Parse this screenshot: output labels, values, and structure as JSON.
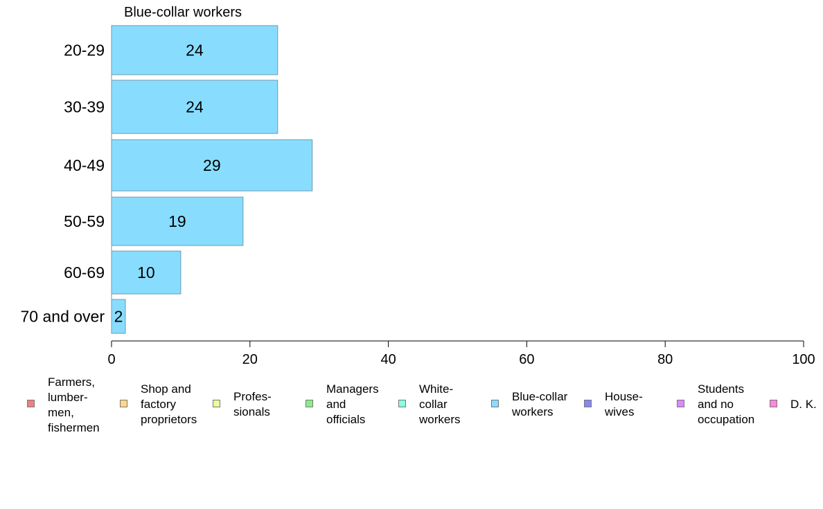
{
  "chart_data": {
    "type": "bar",
    "orientation": "horizontal",
    "title": "Blue-collar workers",
    "categories": [
      "20-29",
      "30-39",
      "40-49",
      "50-59",
      "60-69",
      "70 and over"
    ],
    "series": [
      {
        "name": "Blue-collar workers",
        "values": [
          24,
          24,
          29,
          19,
          10,
          2
        ],
        "color": "#88DDFF"
      }
    ],
    "data_labels": [
      "24",
      "24",
      "29",
      "19",
      "10",
      "2"
    ],
    "xlim": [
      0,
      100
    ],
    "x_ticks": [
      0,
      20,
      40,
      60,
      80,
      100
    ],
    "grid": false,
    "legend_placement": "bottom"
  },
  "legend": {
    "items": [
      {
        "label": "Farmers,\nlumber-\nmen,\nfishermen",
        "color": "#F08080"
      },
      {
        "label": "Shop and\nfactory\nproprietors",
        "color": "#FFD98A"
      },
      {
        "label": "Profes-\nsionals",
        "color": "#EEFF99"
      },
      {
        "label": "Managers\nand\nofficials",
        "color": "#88EE88"
      },
      {
        "label": "White-\ncollar\nworkers",
        "color": "#88FFDD"
      },
      {
        "label": "Blue-collar\nworkers",
        "color": "#88DDFF"
      },
      {
        "label": "House-\nwives",
        "color": "#8888EE"
      },
      {
        "label": "Students\nand no\noccupation",
        "color": "#DD88FF"
      },
      {
        "label": "D. K.",
        "color": "#FF88DD"
      }
    ]
  }
}
